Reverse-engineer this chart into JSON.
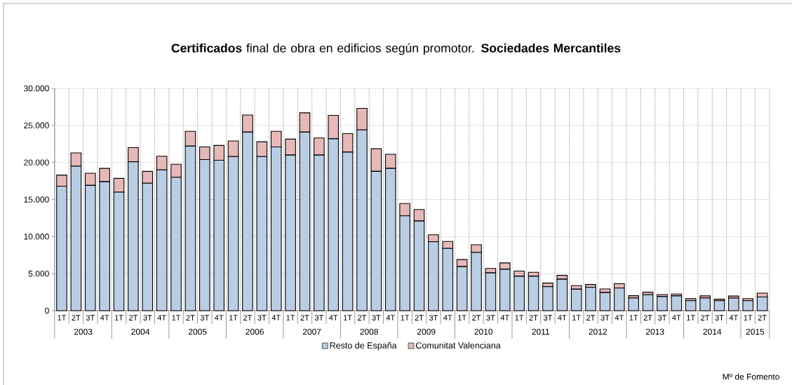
{
  "chart_data": {
    "type": "bar",
    "title": "**Certificados** final de obra en edificios según promotor. **Sociedades Mercantiles**",
    "categories": [
      "1T",
      "2T",
      "3T",
      "4T",
      "1T",
      "2T",
      "3T",
      "4T",
      "1T",
      "2T",
      "3T",
      "4T",
      "1T",
      "2T",
      "3T",
      "4T",
      "1T",
      "2T",
      "3T",
      "4T",
      "1T",
      "2T",
      "3T",
      "4T",
      "1T",
      "2T",
      "3T",
      "4T",
      "1T",
      "2T",
      "3T",
      "4T",
      "1T",
      "2T",
      "3T",
      "4T",
      "1T",
      "2T",
      "3T",
      "4T",
      "1T",
      "2T",
      "3T",
      "4T",
      "1T",
      "2T",
      "3T",
      "4T",
      "1T",
      "2T"
    ],
    "stacked": true,
    "series": [
      {
        "name": "Resto de España",
        "color": "#b9cde5",
        "values": [
          16800,
          19500,
          16900,
          17400,
          16000,
          20100,
          17200,
          19000,
          18000,
          22200,
          20400,
          20300,
          20800,
          24100,
          20800,
          22100,
          21000,
          24100,
          21000,
          23200,
          21400,
          24400,
          18800,
          19200,
          12800,
          12100,
          9300,
          8400,
          5950,
          7850,
          5100,
          5600,
          4650,
          4650,
          3250,
          4250,
          2900,
          3150,
          2450,
          3050,
          1700,
          2150,
          1900,
          2000,
          1350,
          1700,
          1350,
          1700,
          1350,
          1850
        ]
      },
      {
        "name": "Comunitat Valenciana",
        "color": "#e6b9b8",
        "values": [
          1500,
          1800,
          1650,
          1800,
          1850,
          1900,
          1600,
          1850,
          1750,
          2000,
          1700,
          2000,
          2100,
          2300,
          2000,
          2100,
          2150,
          2600,
          2300,
          3150,
          2500,
          2900,
          3050,
          1900,
          1650,
          1550,
          950,
          950,
          950,
          1050,
          600,
          850,
          700,
          530,
          480,
          520,
          480,
          390,
          480,
          600,
          320,
          350,
          280,
          250,
          270,
          300,
          200,
          280,
          280,
          520
        ]
      }
    ],
    "ylim": [
      0,
      30000
    ],
    "yticks": [
      0,
      {
        "value": 5000,
        "label": "5.000"
      },
      {
        "value": 10000,
        "label": "10.000"
      },
      {
        "value": 15000,
        "label": "15.000"
      },
      {
        "value": 20000,
        "label": "20.000"
      },
      {
        "value": 25000,
        "label": "25.000"
      },
      {
        "value": 30000,
        "label": "30.000"
      }
    ],
    "grid": true,
    "legend": "bottom",
    "annotations": [
      "2003",
      "2004",
      "2005",
      "2006",
      "2007",
      "2008",
      "2009",
      "2010",
      "2011",
      "2012",
      "2013",
      "2014",
      "2015",
      "Mº  de Fomento"
    ]
  }
}
